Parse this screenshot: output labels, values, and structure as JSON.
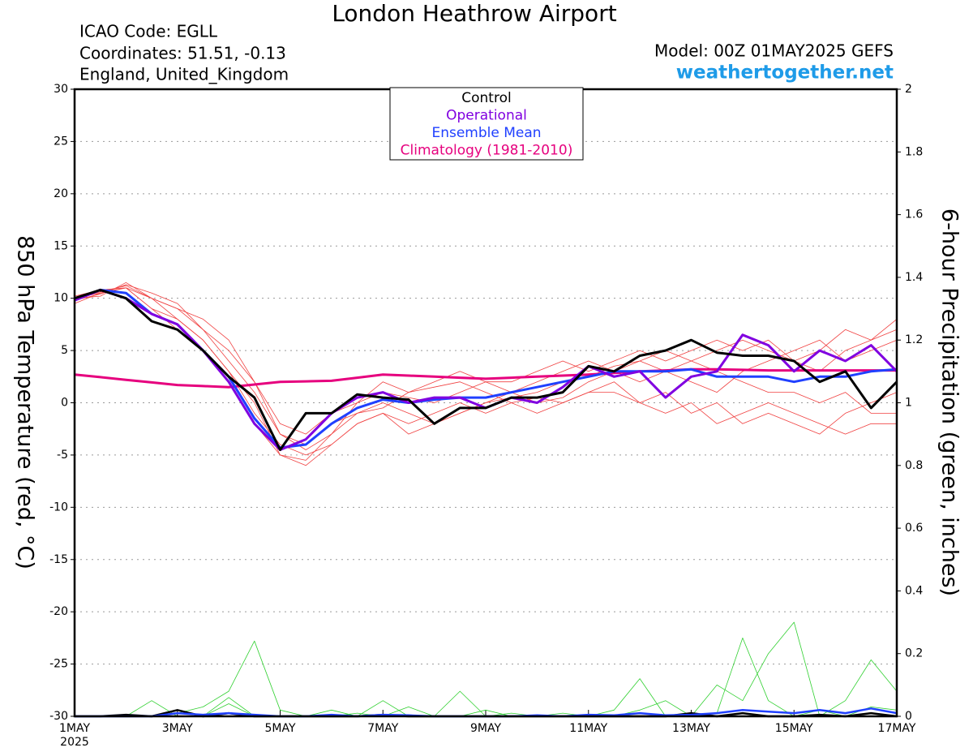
{
  "chart_data": {
    "type": "line",
    "title": "London Heathrow Airport",
    "info": [
      "ICAO Code: EGLL",
      "Coordinates: 51.51, -0.13",
      "England, United_Kingdom"
    ],
    "model": "Model: 00Z 01MAY2025 GEFS",
    "site": "weathertogether.net",
    "ylabel": "850 hPa Temperature (red, °C)",
    "y2label": "6-hour Precipitation (green, inches)",
    "year_label": "2025",
    "x": [
      1,
      1.5,
      2,
      2.5,
      3,
      3.5,
      4,
      4.5,
      5,
      5.5,
      6,
      6.5,
      7,
      7.5,
      8,
      8.5,
      9,
      9.5,
      10,
      10.5,
      11,
      11.5,
      12,
      12.5,
      13,
      13.5,
      14,
      14.5,
      15,
      15.5,
      16,
      16.5,
      17
    ],
    "xlim": [
      1,
      17
    ],
    "xticks": [
      {
        "value": 1,
        "label": "1MAY"
      },
      {
        "value": 3,
        "label": "3MAY"
      },
      {
        "value": 5,
        "label": "5MAY"
      },
      {
        "value": 7,
        "label": "7MAY"
      },
      {
        "value": 9,
        "label": "9MAY"
      },
      {
        "value": 11,
        "label": "11MAY"
      },
      {
        "value": 13,
        "label": "13MAY"
      },
      {
        "value": 15,
        "label": "15MAY"
      },
      {
        "value": 17,
        "label": "17MAY"
      }
    ],
    "ylim": [
      -30,
      30
    ],
    "yticks": [
      -30,
      -25,
      -20,
      -15,
      -10,
      -5,
      0,
      5,
      10,
      15,
      20,
      25,
      30
    ],
    "y2lim": [
      0,
      2
    ],
    "y2ticks": [
      0,
      0.2,
      0.4,
      0.6,
      0.8,
      1,
      1.2,
      1.4,
      1.6,
      1.8,
      2
    ],
    "grid": true,
    "series": [
      {
        "color": "#f04040",
        "values": [
          10,
          10.5,
          11,
          9,
          8,
          6,
          3,
          0,
          -5,
          -5.5,
          -3,
          -1,
          0,
          -1,
          -2,
          -1,
          0,
          0.5,
          1,
          2,
          2.5,
          3.5,
          4,
          5,
          4,
          5,
          6,
          5,
          4,
          3,
          5,
          6,
          7
        ]
      },
      {
        "color": "#f04040",
        "values": [
          10,
          10.2,
          11.5,
          10,
          9,
          8,
          6,
          2,
          -3,
          -4,
          -2,
          -1,
          -0.5,
          1,
          1.5,
          2,
          1,
          0,
          -1,
          0,
          1,
          2,
          0,
          1,
          -1,
          0,
          -2,
          -1,
          -2,
          -3,
          -1,
          0,
          1
        ]
      },
      {
        "color": "#f04040",
        "values": [
          9.5,
          10.5,
          11,
          9,
          7,
          5,
          2,
          -2,
          -5,
          -6,
          -4,
          -2,
          -1,
          -3,
          -2,
          -1,
          0,
          1,
          2,
          3,
          4,
          3,
          2,
          3,
          4,
          3,
          2,
          1,
          1,
          0,
          1,
          -1,
          -1
        ]
      },
      {
        "color": "#f04040",
        "values": [
          10,
          10.6,
          11.2,
          10,
          9,
          7,
          4,
          1,
          -3,
          -4.5,
          -3,
          0,
          1,
          0.5,
          0,
          1,
          2,
          1,
          0,
          0.5,
          2,
          3,
          4,
          3,
          2,
          1,
          3,
          4,
          5,
          6,
          4,
          5,
          6
        ]
      },
      {
        "color": "#f04040",
        "values": [
          10.2,
          10.8,
          11,
          10,
          8,
          6,
          3,
          -1,
          -4,
          -5,
          -4,
          -2,
          -1,
          -2,
          -1,
          0,
          -1,
          0,
          0.5,
          0,
          1,
          1,
          0,
          -1,
          0,
          -2,
          -1,
          0,
          -1,
          -2,
          -3,
          -2,
          -2
        ]
      },
      {
        "color": "#f04040",
        "values": [
          9.8,
          10.4,
          11.3,
          10.5,
          9.5,
          7,
          5,
          2,
          -2,
          -3,
          -1,
          0,
          2,
          1,
          2,
          3,
          2,
          2,
          3,
          4,
          3,
          4,
          5,
          4,
          5,
          6,
          5,
          6,
          4,
          5,
          7,
          6,
          8
        ]
      },
      {
        "color": "#30d030",
        "axis": "y2",
        "values": [
          0,
          0,
          0,
          0,
          0.01,
          0.03,
          0.08,
          0.24,
          0.02,
          0,
          0,
          0.01,
          0,
          0.03,
          0,
          0,
          0,
          0.01,
          0,
          0,
          0,
          0,
          0,
          0,
          0,
          0,
          0,
          0,
          0,
          0,
          0,
          0,
          0
        ]
      },
      {
        "color": "#30d030",
        "axis": "y2",
        "values": [
          0,
          0,
          0,
          0.05,
          0,
          0,
          0.06,
          0,
          0,
          0,
          0,
          0,
          0,
          0,
          0,
          0.08,
          0,
          0,
          0,
          0,
          0,
          0.02,
          0.12,
          0,
          0,
          0.01,
          0.25,
          0.05,
          0,
          0.02,
          0,
          0.03,
          0.02
        ]
      },
      {
        "color": "#30d030",
        "axis": "y2",
        "values": [
          0,
          0,
          0,
          0,
          0,
          0,
          0.04,
          0,
          0,
          0,
          0.02,
          0,
          0.05,
          0,
          0,
          0,
          0.02,
          0,
          0,
          0.01,
          0,
          0,
          0.02,
          0.05,
          0,
          0.1,
          0.05,
          0.2,
          0.3,
          0,
          0.05,
          0.18,
          0.08
        ]
      },
      {
        "color": "#000000",
        "axis": "y2",
        "values": [
          0,
          0,
          0.005,
          0,
          0.02,
          0,
          0.01,
          0,
          0,
          0,
          0,
          0,
          0.005,
          0,
          0,
          0,
          0,
          0,
          0,
          0,
          0,
          0,
          0,
          0,
          0.01,
          0,
          0.01,
          0,
          0,
          0.005,
          0,
          0.01,
          0
        ]
      },
      {
        "color": "#2040ff",
        "axis": "y2",
        "values": [
          0,
          0,
          0,
          0,
          0.01,
          0.005,
          0.01,
          0.005,
          0,
          0,
          0.005,
          0,
          0.005,
          0.003,
          0,
          0,
          0,
          0,
          0.003,
          0,
          0.005,
          0.003,
          0.01,
          0.003,
          0.005,
          0.01,
          0.02,
          0.015,
          0.01,
          0.02,
          0.01,
          0.025,
          0.01
        ]
      },
      {
        "name": "Control",
        "color": "#000000",
        "values": [
          10,
          10.8,
          10,
          7.8,
          7,
          5,
          2.5,
          0.5,
          -4.5,
          -1,
          -1,
          0.8,
          0.5,
          0.3,
          -2,
          -0.5,
          -0.5,
          0.5,
          0.5,
          1,
          3.5,
          3,
          4.5,
          5,
          6,
          4.8,
          4.5,
          4.5,
          4,
          2,
          3,
          -0.5,
          2
        ]
      },
      {
        "name": "Operational",
        "color": "#8000e0",
        "values": [
          9.8,
          10.8,
          10,
          8.5,
          7.5,
          5,
          2,
          -2,
          -4.5,
          -3.5,
          -1,
          0.5,
          1,
          0,
          0.5,
          0.5,
          -0.5,
          0.5,
          0,
          1.5,
          3.5,
          2.5,
          3,
          0.5,
          2.5,
          3,
          6.5,
          5.5,
          3,
          5,
          4,
          5.5,
          3
        ]
      },
      {
        "name": "Ensemble Mean",
        "color": "#2040ff",
        "values": [
          9.8,
          10.8,
          10.5,
          8.5,
          7.5,
          5,
          2.5,
          -1.5,
          -4.3,
          -4,
          -2,
          -0.5,
          0.3,
          0,
          0.3,
          0.5,
          0.5,
          1,
          1.5,
          2,
          2.5,
          3,
          3,
          3,
          3.2,
          2.5,
          2.5,
          2.5,
          2,
          2.5,
          2.5,
          3,
          3.2
        ]
      },
      {
        "name": "Climatology (1981-2010)",
        "color": "#e6007e",
        "values": [
          2.7,
          2.45,
          2.2,
          1.95,
          1.7,
          1.6,
          1.5,
          1.75,
          2,
          2.05,
          2.1,
          2.4,
          2.7,
          2.6,
          2.5,
          2.4,
          2.3,
          2.4,
          2.5,
          2.6,
          2.7,
          2.85,
          3,
          3.1,
          3.2,
          3.2,
          3.15,
          3.1,
          3.1,
          3.1,
          3.1,
          3.1,
          3.1
        ]
      }
    ]
  }
}
